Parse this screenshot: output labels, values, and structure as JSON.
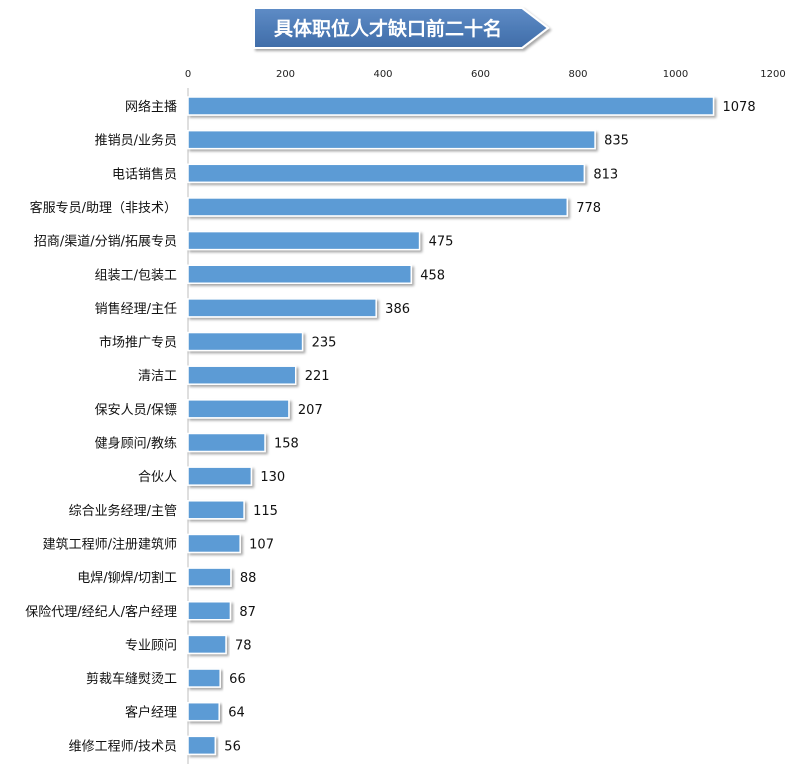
{
  "chart_data": {
    "type": "bar",
    "orientation": "horizontal",
    "title": "具体职位人才缺口前二十名",
    "xlim": [
      0,
      1200
    ],
    "xticks": [
      0,
      200,
      400,
      600,
      800,
      1000,
      1200
    ],
    "categories": [
      "网络主播",
      "推销员/业务员",
      "电话销售员",
      "客服专员/助理（非技术）",
      "招商/渠道/分销/拓展专员",
      "组装工/包装工",
      "销售经理/主任",
      "市场推广专员",
      "清洁工",
      "保安人员/保镖",
      "健身顾问/教练",
      "合伙人",
      "综合业务经理/主管",
      "建筑工程师/注册建筑师",
      "电焊/铆焊/切割工",
      "保险代理/经纪人/客户经理",
      "专业顾问",
      "剪裁车缝熨烫工",
      "客户经理",
      "维修工程师/技术员"
    ],
    "values": [
      1078,
      835,
      813,
      778,
      475,
      458,
      386,
      235,
      221,
      207,
      158,
      130,
      115,
      107,
      88,
      87,
      78,
      66,
      64,
      56
    ],
    "bar_color": "#5B9BD5",
    "banner_color": "#4F7DB8",
    "axis_position": "top",
    "grid": false
  }
}
